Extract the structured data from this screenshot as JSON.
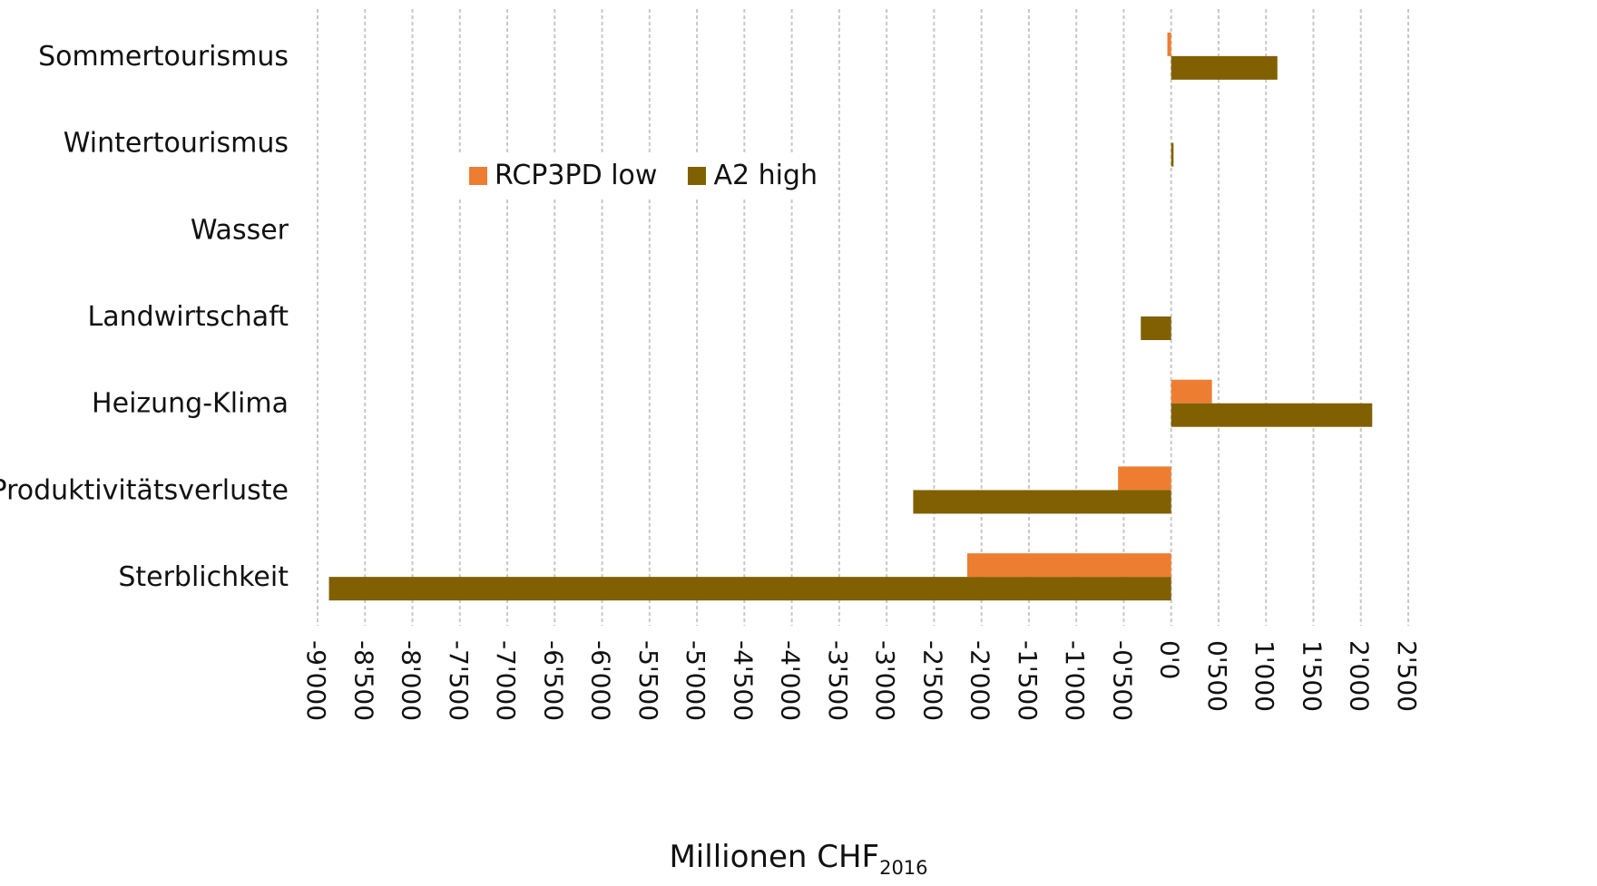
{
  "chart_data": {
    "type": "bar",
    "orientation": "horizontal",
    "categories": [
      "Sommertourismus",
      "Wintertourismus",
      "Wasser",
      "Landwirtschaft",
      "Heizung-Klima",
      "Produktivitätsverluste",
      "Sterblichkeit"
    ],
    "series": [
      {
        "name": "RCP3PD low",
        "color": "#ED7D31",
        "values": [
          -40,
          0,
          0,
          0,
          430,
          -560,
          -2150
        ]
      },
      {
        "name": "A2 high",
        "color": "#806000",
        "values": [
          1120,
          25,
          0,
          -320,
          2120,
          -2720,
          -8880
        ]
      }
    ],
    "xlabel": "Millionen CHF",
    "xlabel_subscript": "2016",
    "ylabel": "",
    "xlim": [
      -9000,
      2500
    ],
    "xticks": [
      -9000,
      -8500,
      -8000,
      -7500,
      -7000,
      -6500,
      -6000,
      -5500,
      -5000,
      -4500,
      -4000,
      -3500,
      -3000,
      -2500,
      -2000,
      -1500,
      -1000,
      -500,
      0,
      500,
      1000,
      1500,
      2000,
      2500
    ],
    "xtick_labels": [
      "-9'000",
      "-8'500",
      "-8'000",
      "-7'500",
      "-7'000",
      "-6'500",
      "-6'000",
      "-5'500",
      "-5'000",
      "-4'500",
      "-4'000",
      "-3'500",
      "-3'000",
      "-2'500",
      "-2'000",
      "-1'500",
      "-1'000",
      "-0'500",
      "0'0",
      "0'500",
      "1'000",
      "1'500",
      "2'000",
      "2'500"
    ],
    "grid": "vertical dashed",
    "legend_position": "upper-left inside plot"
  }
}
